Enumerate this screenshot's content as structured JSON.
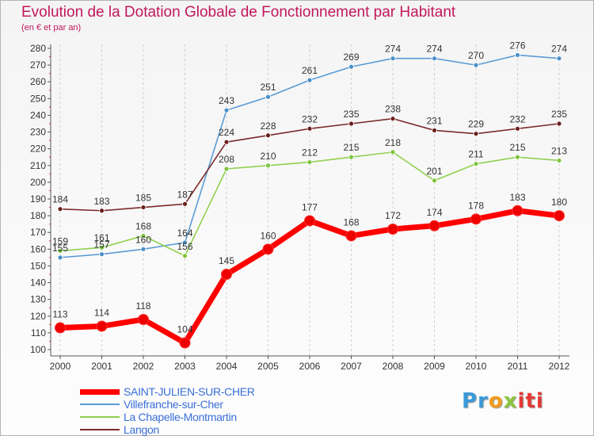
{
  "title": "Evolution de la Dotation Globale de Fonctionnement par Habitant",
  "subtitle": "(en € et par an)",
  "logo": {
    "parts": [
      "Pr",
      "o",
      "x",
      "iti"
    ]
  },
  "colors": {
    "title": "#c2185b",
    "axis": "#555555",
    "grid": "#d0d0d0"
  },
  "chart_data": {
    "type": "line",
    "title": "Evolution de la Dotation Globale de Fonctionnement par Habitant",
    "subtitle": "(en € et par an)",
    "xlabel": "",
    "ylabel": "",
    "ylim": [
      100,
      280
    ],
    "ytick_step": 10,
    "grid": "vertical-dashed",
    "legend": "bottom-left",
    "x": [
      "2000",
      "2001",
      "2002",
      "2003",
      "2004",
      "2005",
      "2006",
      "2007",
      "2008",
      "2009",
      "2010",
      "2011",
      "2012"
    ],
    "series": [
      {
        "name": "SAINT-JULIEN-SUR-CHER",
        "color": "#ff0000",
        "marker_color": "#ee0000",
        "label_color": "#333333",
        "legend_color": "#3a6fd8",
        "bold": true,
        "values": [
          113,
          114,
          118,
          104,
          145,
          160,
          177,
          168,
          172,
          174,
          178,
          183,
          180
        ]
      },
      {
        "name": "Villefranche-sur-Cher",
        "color": "#5b9bd5",
        "marker_color": "#4a90c8",
        "label_color": "#333333",
        "legend_color": "#3a6fd8",
        "bold": false,
        "values": [
          155,
          157,
          160,
          164,
          243,
          251,
          261,
          269,
          274,
          274,
          270,
          276,
          274
        ]
      },
      {
        "name": "La Chapelle-Montmartin",
        "color": "#8fd14f",
        "marker_color": "#7cc43a",
        "label_color": "#333333",
        "legend_color": "#3a6fd8",
        "bold": false,
        "values": [
          159,
          161,
          168,
          156,
          208,
          210,
          212,
          215,
          218,
          201,
          211,
          215,
          213
        ]
      },
      {
        "name": "Langon",
        "color": "#7b2b2b",
        "marker_color": "#6b1e1e",
        "label_color": "#333333",
        "legend_color": "#3a6fd8",
        "bold": false,
        "values": [
          184,
          183,
          185,
          187,
          224,
          228,
          232,
          235,
          238,
          231,
          229,
          232,
          235
        ]
      }
    ],
    "legend_order": [
      0,
      1,
      2,
      3
    ]
  }
}
